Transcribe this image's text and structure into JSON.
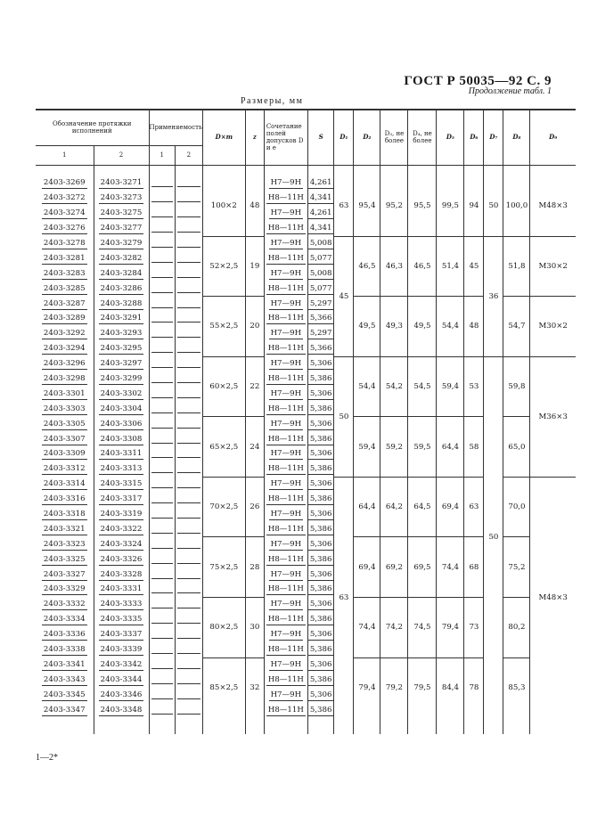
{
  "page_header": "ГОСТ Р 50035—92 С. 9",
  "continuation": "Продолжение табл. 1",
  "units": "Размеры, мм",
  "columns": {
    "designation": "Обозначение протяжки исполнений",
    "designation_sub": [
      "1",
      "2"
    ],
    "applicability": "Применяемость",
    "applicability_sub": [
      "1",
      "2"
    ],
    "dxm": "D×m",
    "z": "z",
    "tolerance": "Сочетание полей допусков D и e",
    "s": "S",
    "d1": "D₁",
    "d2": "D₂",
    "d3": "D₃, не более",
    "d4": "D₄, не более",
    "d5": "D₅",
    "d6": "D₆",
    "d7": "D₇",
    "d8": "D₈",
    "d9": "D₉"
  },
  "rows": {
    "col1": [
      "2403-3269",
      "2403-3272",
      "2403-3274",
      "2403-3276",
      "2403-3278",
      "2403-3281",
      "2403-3283",
      "2403-3285",
      "2403-3287",
      "2403-3289",
      "2403-3292",
      "2403-3294",
      "2403-3296",
      "2403-3298",
      "2403-3301",
      "2403-3303",
      "2403-3305",
      "2403-3307",
      "2403-3309",
      "2403-3312",
      "2403-3314",
      "2403-3316",
      "2403-3318",
      "2403-3321",
      "2403-3323",
      "2403-3325",
      "2403-3327",
      "2403-3329",
      "2403-3332",
      "2403-3334",
      "2403-3336",
      "2403-3338",
      "2403-3341",
      "2403-3343",
      "2403-3345",
      "2403-3347"
    ],
    "col2": [
      "2403-3271",
      "2403-3273",
      "2403-3275",
      "2403-3277",
      "2403-3279",
      "2403-3282",
      "2403-3284",
      "2403-3286",
      "2403-3288",
      "2403-3291",
      "2403-3293",
      "2403-3295",
      "2403-3297",
      "2403-3299",
      "2403-3302",
      "2403-3304",
      "2403-3306",
      "2403-3308",
      "2403-3311",
      "2403-3313",
      "2403-3315",
      "2403-3317",
      "2403-3319",
      "2403-3322",
      "2403-3324",
      "2403-3326",
      "2403-3328",
      "2403-3331",
      "2403-3333",
      "2403-3335",
      "2403-3337",
      "2403-3339",
      "2403-3342",
      "2403-3344",
      "2403-3346",
      "2403-3348"
    ],
    "applicability_1": "—",
    "applicability_2": "—"
  },
  "groups": [
    {
      "dxm": "100×2",
      "z": "48",
      "tol": [
        "H7—9H",
        "H8—11H",
        "H7—9H",
        "H8—11H"
      ],
      "s": [
        "4,261",
        "4,341",
        "4,261",
        "4,341"
      ],
      "d2": "95,4",
      "d3": "95,2",
      "d4": "95,5",
      "d5": "99,5",
      "d6": "94",
      "d8": "100,0"
    },
    {
      "dxm": "52×2,5",
      "z": "19",
      "tol": [
        "H7—9H",
        "H8—11H",
        "H7—9H",
        "H8—11H"
      ],
      "s": [
        "5,008",
        "5,077",
        "5,008",
        "5,077"
      ],
      "d2": "46,5",
      "d3": "46,3",
      "d4": "46,5",
      "d5": "51,4",
      "d6": "45",
      "d8": "51,8"
    },
    {
      "dxm": "55×2,5",
      "z": "20",
      "tol": [
        "H7—9H",
        "H8—11H",
        "H7—9H",
        "H8—11H"
      ],
      "s": [
        "5,297",
        "5,366",
        "5,297",
        "5,366"
      ],
      "d2": "49,5",
      "d3": "49,3",
      "d4": "49,5",
      "d5": "54,4",
      "d6": "48",
      "d8": "54,7"
    },
    {
      "dxm": "60×2,5",
      "z": "22",
      "tol": [
        "H7—9H",
        "H8—11H",
        "H7—9H",
        "H8—11H"
      ],
      "s": [
        "5,306",
        "5,386",
        "5,306",
        "5,386"
      ],
      "d2": "54,4",
      "d3": "54,2",
      "d4": "54,5",
      "d5": "59,4",
      "d6": "53",
      "d8": "59,8"
    },
    {
      "dxm": "65×2,5",
      "z": "24",
      "tol": [
        "H7—9H",
        "H8—11H",
        "H7—9H",
        "H8—11H"
      ],
      "s": [
        "5,306",
        "5,386",
        "5,306",
        "5,386"
      ],
      "d2": "59,4",
      "d3": "59,2",
      "d4": "59,5",
      "d5": "64,4",
      "d6": "58",
      "d8": "65,0"
    },
    {
      "dxm": "70×2,5",
      "z": "26",
      "tol": [
        "H7—9H",
        "H8—11H",
        "H7—9H",
        "H8—11H"
      ],
      "s": [
        "5,306",
        "5,386",
        "5,306",
        "5,386"
      ],
      "d2": "64,4",
      "d3": "64,2",
      "d4": "64,5",
      "d5": "69,4",
      "d6": "63",
      "d8": "70,0"
    },
    {
      "dxm": "75×2,5",
      "z": "28",
      "tol": [
        "H7—9H",
        "H8—11H",
        "H7—9H",
        "H8—11H"
      ],
      "s": [
        "5,306",
        "5,386",
        "5,306",
        "5,386"
      ],
      "d2": "69,4",
      "d3": "69,2",
      "d4": "69,5",
      "d5": "74,4",
      "d6": "68",
      "d8": "75,2"
    },
    {
      "dxm": "80×2,5",
      "z": "30",
      "tol": [
        "H7—9H",
        "H8—11H",
        "H7—9H",
        "H8—11H"
      ],
      "s": [
        "5,306",
        "5,386",
        "5,306",
        "5,386"
      ],
      "d2": "74,4",
      "d3": "74,2",
      "d4": "74,5",
      "d5": "79,4",
      "d6": "73",
      "d8": "80,2"
    },
    {
      "dxm": "85×2,5",
      "z": "32",
      "tol": [
        "H7—9H",
        "H8—11H",
        "H7—9H",
        "H8—11H"
      ],
      "s": [
        "5,306",
        "5,386",
        "5,306",
        "5,386"
      ],
      "d2": "79,4",
      "d3": "79,2",
      "d4": "79,5",
      "d5": "84,4",
      "d6": "78",
      "d8": "85,3"
    }
  ],
  "d1_spans": [
    {
      "value": "63",
      "groups": 1
    },
    {
      "value": "45",
      "groups": 2
    },
    {
      "value": "50",
      "groups": 2
    },
    {
      "value": "63",
      "groups": 4
    }
  ],
  "d7_spans": [
    {
      "value": "50",
      "groups": 1
    },
    {
      "value": "36",
      "groups": 2
    },
    {
      "value": "50",
      "groups": 6
    }
  ],
  "d9_spans": [
    {
      "value": "M48×3",
      "groups": 1
    },
    {
      "value": "M30×2",
      "groups": 1
    },
    {
      "value": "M30×2",
      "groups": 1
    },
    {
      "value": "M36×3",
      "groups": 2
    },
    {
      "value": "M48×3",
      "groups": 4
    }
  ],
  "footer": "1—2*"
}
